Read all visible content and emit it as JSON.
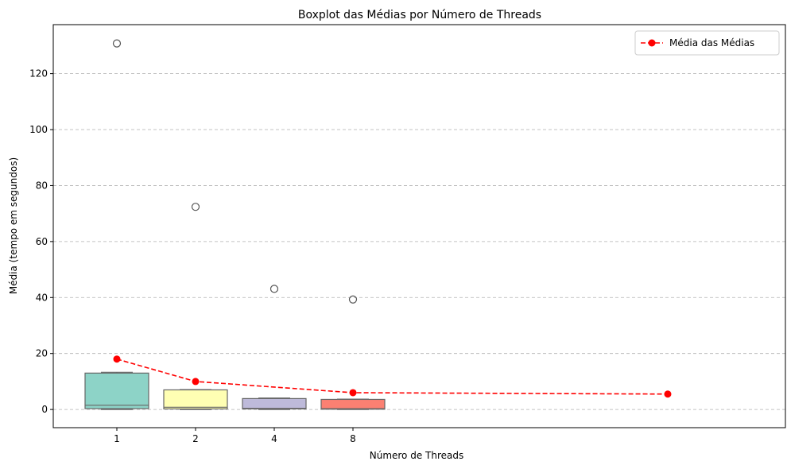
{
  "chart_data": {
    "type": "box",
    "title": "Boxplot das Médias por Número de Threads",
    "xlabel": "Número de Threads",
    "ylabel": "Média (tempo em segundos)",
    "categories": [
      "1",
      "2",
      "4",
      "8"
    ],
    "ylim": [
      -6.5,
      137.5
    ],
    "yticks": [
      0,
      20,
      40,
      60,
      80,
      100,
      120
    ],
    "grid": "y-dashed",
    "boxes": [
      {
        "category": "1",
        "min": 0.0,
        "q1": 0.3,
        "median": 1.5,
        "q3": 13.0,
        "max": 13.3,
        "outliers": [
          130.8
        ],
        "color": "#8dd3c7"
      },
      {
        "category": "2",
        "min": 0.0,
        "q1": 0.2,
        "median": 0.8,
        "q3": 7.0,
        "max": 7.1,
        "outliers": [
          72.4
        ],
        "color": "#ffffb3"
      },
      {
        "category": "4",
        "min": 0.0,
        "q1": 0.2,
        "median": 0.4,
        "q3": 3.9,
        "max": 4.1,
        "outliers": [
          43.1
        ],
        "color": "#bebada"
      },
      {
        "category": "8",
        "min": 0.0,
        "q1": 0.1,
        "median": 0.3,
        "q3": 3.6,
        "max": 3.7,
        "outliers": [
          39.3
        ],
        "color": "#fb8072"
      }
    ],
    "mean_line": {
      "name": "Média das Médias",
      "color": "#ff0000",
      "style": "dashed",
      "x": [
        1,
        2,
        4,
        8
      ],
      "y": [
        18.0,
        10.0,
        6.0,
        5.5
      ]
    },
    "legend": {
      "placement": "top-right",
      "entries": [
        "Média das Médias"
      ]
    }
  }
}
